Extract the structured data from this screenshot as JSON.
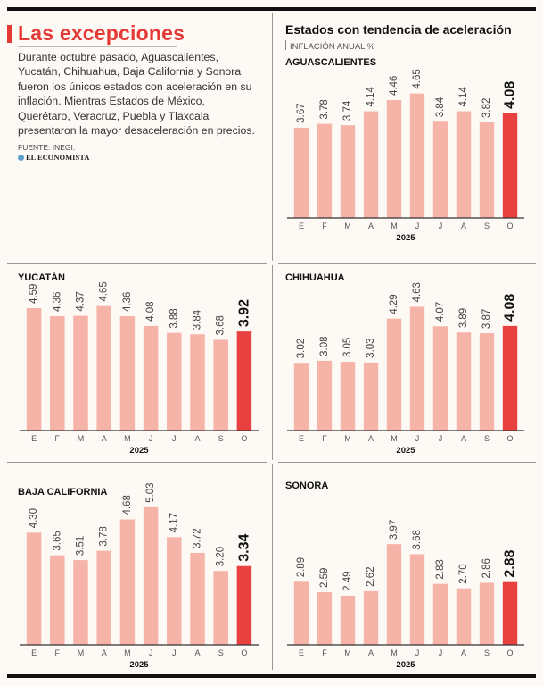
{
  "header": {
    "title": "Las excepciones",
    "intro": "Durante octubre pasado, Aguascalientes, Yucatán, Chihuahua, Baja California y Sonora fueron los únicos estados con aceleración en su inflación. Mientras Estados de México, Querétaro, Veracruz, Puebla y Tlaxcala presentaron la mayor desaceleración en precios.",
    "source": "FUENTE: INEGI.",
    "brand": "EL ECONOMISTA"
  },
  "section": {
    "title": "Estados con tendencia de aceleración",
    "subtitle": "INFLACIÓN ANUAL %"
  },
  "colors": {
    "bar": "#f6b3a8",
    "highlight": "#e8413f",
    "accent": "#e53935"
  },
  "chart_data": [
    {
      "type": "bar",
      "title": "AGUASCALIENTES",
      "categories": [
        "E",
        "F",
        "M",
        "A",
        "M",
        "J",
        "J",
        "A",
        "S",
        "O"
      ],
      "values": [
        3.67,
        3.78,
        3.74,
        4.14,
        4.46,
        4.65,
        3.84,
        4.14,
        3.82,
        4.08
      ],
      "labels": [
        "3.67",
        "3.78",
        "3.74",
        "4.14",
        "4.46",
        "4.65",
        "3.84",
        "4.14",
        "3.82",
        "4.08"
      ],
      "xlabel": "2025",
      "ylabel": "Inflación anual %",
      "highlight_index": 9
    },
    {
      "type": "bar",
      "title": "YUCATÁN",
      "categories": [
        "E",
        "F",
        "M",
        "A",
        "M",
        "J",
        "J",
        "A",
        "S",
        "O"
      ],
      "values": [
        4.59,
        4.36,
        4.37,
        4.65,
        4.36,
        4.08,
        3.88,
        3.84,
        3.68,
        3.92
      ],
      "labels": [
        "4.59",
        "4.36",
        "4.37",
        "4.65",
        "4.36",
        "4.08",
        "3.88",
        "3.84",
        "3.68",
        "3.92"
      ],
      "xlabel": "2025",
      "ylabel": "Inflación anual %",
      "highlight_index": 9
    },
    {
      "type": "bar",
      "title": "CHIHUAHUA",
      "categories": [
        "E",
        "F",
        "M",
        "A",
        "M",
        "J",
        "J",
        "A",
        "S",
        "O"
      ],
      "values": [
        3.02,
        3.08,
        3.05,
        3.03,
        4.29,
        4.63,
        4.07,
        3.89,
        3.87,
        4.08
      ],
      "labels": [
        "3.02",
        "3.08",
        "3.05",
        "3.03",
        "4.29",
        "4.63",
        "4.07",
        "3.89",
        "3.87",
        "4.08"
      ],
      "xlabel": "2025",
      "ylabel": "Inflación anual %",
      "highlight_index": 9
    },
    {
      "type": "bar",
      "title": "BAJA CALIFORNIA",
      "categories": [
        "E",
        "F",
        "M",
        "A",
        "M",
        "J",
        "J",
        "A",
        "S",
        "O"
      ],
      "values": [
        4.3,
        3.65,
        3.51,
        3.78,
        4.68,
        5.03,
        4.17,
        3.72,
        3.2,
        3.34
      ],
      "labels": [
        "4.30",
        "3.65",
        "3.51",
        "3.78",
        "4.68",
        "5.03",
        "4.17",
        "3.72",
        "3.20",
        "3.34"
      ],
      "xlabel": "2025",
      "ylabel": "Inflación anual %",
      "highlight_index": 9
    },
    {
      "type": "bar",
      "title": "SONORA",
      "categories": [
        "E",
        "F",
        "M",
        "A",
        "M",
        "J",
        "J",
        "A",
        "S",
        "O"
      ],
      "values": [
        2.89,
        2.59,
        2.49,
        2.62,
        3.97,
        3.68,
        2.83,
        2.7,
        2.86,
        2.88
      ],
      "labels": [
        "2.89",
        "2.59",
        "2.49",
        "2.62",
        "3.97",
        "3.68",
        "2.83",
        "2.70",
        "2.86",
        "2.88"
      ],
      "xlabel": "2025",
      "ylabel": "Inflación anual %",
      "highlight_index": 9
    }
  ]
}
